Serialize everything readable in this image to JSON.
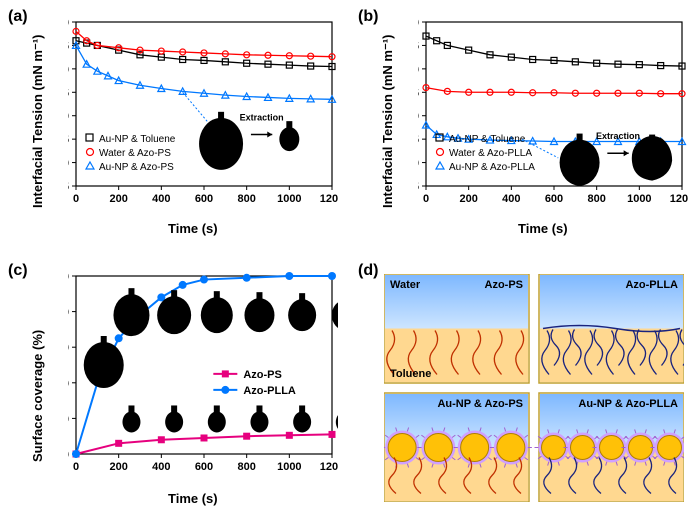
{
  "panels": {
    "a": {
      "label": "(a)",
      "ylabel": "Interfacial Tension (mN m⁻¹)",
      "xlabel": "Time (s)",
      "xlim": [
        0,
        1200
      ],
      "xtick_step": 200,
      "ylim": [
        5,
        40
      ],
      "ytick_step": 5,
      "series": [
        {
          "name": "Au-NP & Toluene",
          "color": "#000000",
          "marker": "square",
          "data": [
            [
              0,
              36
            ],
            [
              50,
              35.5
            ],
            [
              100,
              35
            ],
            [
              200,
              34
            ],
            [
              300,
              33
            ],
            [
              400,
              32.5
            ],
            [
              500,
              32
            ],
            [
              600,
              31.8
            ],
            [
              700,
              31.5
            ],
            [
              800,
              31.2
            ],
            [
              900,
              31
            ],
            [
              1000,
              30.8
            ],
            [
              1100,
              30.6
            ],
            [
              1200,
              30.5
            ]
          ]
        },
        {
          "name": "Water & Azo-PS",
          "color": "#ff0000",
          "marker": "circle",
          "data": [
            [
              0,
              38
            ],
            [
              50,
              36
            ],
            [
              100,
              35
            ],
            [
              200,
              34.5
            ],
            [
              300,
              34
            ],
            [
              400,
              33.8
            ],
            [
              500,
              33.6
            ],
            [
              600,
              33.4
            ],
            [
              700,
              33.2
            ],
            [
              800,
              33
            ],
            [
              900,
              32.9
            ],
            [
              1000,
              32.8
            ],
            [
              1100,
              32.7
            ],
            [
              1200,
              32.6
            ]
          ]
        },
        {
          "name": "Au-NP & Azo-PS",
          "color": "#0078ff",
          "marker": "triangle",
          "data": [
            [
              0,
              35
            ],
            [
              50,
              31
            ],
            [
              100,
              29.5
            ],
            [
              150,
              28.5
            ],
            [
              200,
              27.5
            ],
            [
              300,
              26.5
            ],
            [
              400,
              25.8
            ],
            [
              500,
              25.2
            ],
            [
              600,
              24.8
            ],
            [
              700,
              24.4
            ],
            [
              800,
              24.1
            ],
            [
              900,
              23.9
            ],
            [
              1000,
              23.7
            ],
            [
              1100,
              23.6
            ],
            [
              1200,
              23.5
            ]
          ]
        }
      ],
      "extraction_label": "Extraction"
    },
    "b": {
      "label": "(b)",
      "ylabel": "Interfacial Tension (mN m⁻¹)",
      "xlabel": "Time (s)",
      "xlim": [
        0,
        1200
      ],
      "xtick_step": 200,
      "ylim": [
        5,
        40
      ],
      "ytick_step": 5,
      "series": [
        {
          "name": "Au-NP & Toluene",
          "color": "#000000",
          "marker": "square",
          "data": [
            [
              0,
              37
            ],
            [
              50,
              36
            ],
            [
              100,
              35
            ],
            [
              200,
              34
            ],
            [
              300,
              33
            ],
            [
              400,
              32.5
            ],
            [
              500,
              32
            ],
            [
              600,
              31.8
            ],
            [
              700,
              31.5
            ],
            [
              800,
              31.2
            ],
            [
              900,
              31
            ],
            [
              1000,
              30.9
            ],
            [
              1100,
              30.7
            ],
            [
              1200,
              30.6
            ]
          ]
        },
        {
          "name": "Water & Azo-PLLA",
          "color": "#ff0000",
          "marker": "circle",
          "data": [
            [
              0,
              26
            ],
            [
              100,
              25.2
            ],
            [
              200,
              25
            ],
            [
              300,
              25
            ],
            [
              400,
              25
            ],
            [
              500,
              24.9
            ],
            [
              600,
              24.9
            ],
            [
              700,
              24.8
            ],
            [
              800,
              24.8
            ],
            [
              900,
              24.8
            ],
            [
              1000,
              24.8
            ],
            [
              1100,
              24.7
            ],
            [
              1200,
              24.7
            ]
          ]
        },
        {
          "name": "Au-NP & Azo-PLLA",
          "color": "#0078ff",
          "marker": "triangle",
          "data": [
            [
              0,
              18
            ],
            [
              50,
              16
            ],
            [
              100,
              15.5
            ],
            [
              150,
              15.2
            ],
            [
              200,
              15
            ],
            [
              300,
              14.8
            ],
            [
              400,
              14.7
            ],
            [
              500,
              14.6
            ],
            [
              600,
              14.5
            ],
            [
              700,
              14.5
            ],
            [
              800,
              14.5
            ],
            [
              900,
              14.5
            ],
            [
              1000,
              14.5
            ],
            [
              1100,
              14.5
            ],
            [
              1200,
              14.5
            ]
          ]
        }
      ],
      "extraction_label": "Extraction"
    },
    "c": {
      "label": "(c)",
      "ylabel": "Surface coverage (%)",
      "xlabel": "Time (s)",
      "xlim": [
        0,
        1200
      ],
      "xtick_step": 200,
      "ylim": [
        0,
        100
      ],
      "ytick_step": 20,
      "series": [
        {
          "name": "Azo-PS",
          "color": "#e6007e",
          "marker": "square",
          "data": [
            [
              0,
              0
            ],
            [
              200,
              6
            ],
            [
              400,
              8
            ],
            [
              600,
              9
            ],
            [
              800,
              10
            ],
            [
              1000,
              10.5
            ],
            [
              1200,
              11
            ]
          ]
        },
        {
          "name": "Azo-PLLA",
          "color": "#0078ff",
          "marker": "circle",
          "data": [
            [
              0,
              0
            ],
            [
              100,
              40
            ],
            [
              200,
              65
            ],
            [
              300,
              78
            ],
            [
              400,
              88
            ],
            [
              500,
              95
            ],
            [
              600,
              98
            ],
            [
              800,
              99
            ],
            [
              1000,
              100
            ],
            [
              1200,
              100
            ]
          ]
        }
      ]
    },
    "d": {
      "label": "(d)",
      "quadrants": {
        "tl": {
          "title": "Azo-PS",
          "top_label": "Water",
          "bottom_label": "Toluene"
        },
        "tr": {
          "title": "Azo-PLLA"
        },
        "bl": {
          "title": "Au-NP & Azo-PS"
        },
        "br": {
          "title": "Au-NP & Azo-PLLA"
        }
      },
      "colors": {
        "water": "#7eb8ff",
        "toluene": "#ffd890",
        "polymer_red": "#c03000",
        "polymer_blue": "#1a237e",
        "np_core": "#ffc107",
        "np_shell": "#d0a0ff"
      }
    }
  },
  "chart_style": {
    "border_color": "#000000",
    "tick_fontsize": 11,
    "label_fontsize": 13
  }
}
